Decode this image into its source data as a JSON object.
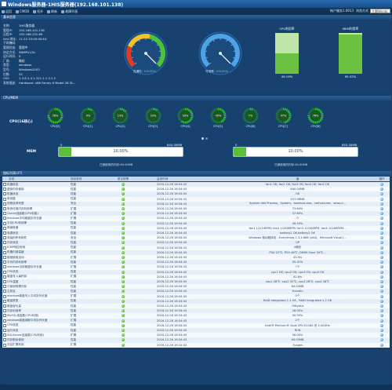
{
  "window": {
    "title": "Windows服务器-1HIS服务器(192.168.101.138)"
  },
  "toolbar": {
    "items": [
      "返回",
      "CMDB",
      "拓扑",
      "刷新",
      "故障列表"
    ],
    "account_label": "帐户服务1.0013",
    "mode_label": "浏览方式",
    "mode_value": "主题Windo"
  },
  "basic": {
    "header": "基本信息",
    "rows": [
      {
        "k": "名称:",
        "v": "1HIS服务器"
      },
      {
        "k": "管理IP:",
        "v": "192.168.101.138"
      },
      {
        "k": "远程IP:",
        "v": "192.168.101.69"
      },
      {
        "k": "MAC地址:",
        "v": "11:22:33:00:00:E4"
      },
      {
        "k": "子网掩码:",
        "v": ""
      },
      {
        "k": "管理状态:",
        "v": "管理中"
      },
      {
        "k": "协议方式:",
        "v": "SNMPv1/2c"
      },
      {
        "k": "运行时间:",
        "v": "0"
      },
      {
        "k": "厂商:",
        "v": "微软"
      },
      {
        "k": "类型:",
        "v": "windows"
      },
      {
        "k": "型号:",
        "v": "Windows2003"
      },
      {
        "k": "位数:",
        "v": "32"
      },
      {
        "k": "OID:",
        "v": "1.3.6.1.4.1.311.1.1.3.1.2"
      },
      {
        "k": "系统描述:",
        "v": "Hardware: x86 Family 6 Model 26 St..."
      }
    ],
    "gauge1": {
      "label": "连通性",
      "value": "100.00%",
      "fraction": 1.0
    },
    "gauge2": {
      "label": "可用率",
      "value": "100.00%",
      "fraction": 1.0
    },
    "cpu_box": {
      "label": "CPU利用率",
      "value": "49.19%",
      "fraction": 0.4919
    },
    "mem_box": {
      "label": "MEM利用率",
      "value": "95.32%",
      "fraction": 0.9532
    }
  },
  "cpumem": {
    "header": "CPU/MEM",
    "cpu_title": "CPU(16核心)",
    "cores": [
      {
        "label": "CPU[0]",
        "value": "76%"
      },
      {
        "label": "CPU[1]",
        "value": "9%"
      },
      {
        "label": "CPU[2]",
        "value": "13%"
      },
      {
        "label": "CPU[3]",
        "value": "10%"
      },
      {
        "label": "CPU[4]",
        "value": "59%"
      },
      {
        "label": "CPU[5]",
        "value": "45%"
      },
      {
        "label": "CPU[6]",
        "value": "7%"
      },
      {
        "label": "CPU[7]",
        "value": "47%"
      },
      {
        "label": "CPU[8]",
        "value": "78%"
      }
    ],
    "mem_title": "MEM",
    "mem1": {
      "min": "0",
      "max": "640.00MB",
      "pct": "10.00%",
      "fraction": 0.1,
      "caption": "已被使用的内存:64.00MB"
    },
    "mem2": {
      "min": "0",
      "max": "640.00MB",
      "pct": "10.00%",
      "fraction": 0.1,
      "caption": "已被使用的内存:64.00MB"
    }
  },
  "indicators": {
    "header": "指标列表(47)",
    "columns": [
      "名称",
      "指标类别",
      "是否报警",
      "监测时间",
      "值",
      "操作"
    ],
    "rows": [
      {
        "name": "机器状态",
        "cat": "性能",
        "time": "2016-12-26 16:34:43",
        "val": "fan1 OK; fan2 OK; fan3 OK; fan4 OK; fan5 OK"
      },
      {
        "name": "虚拟内存使用",
        "cat": "性能",
        "time": "2016-12-26 16:34:43",
        "val": "640.00MB"
      },
      {
        "name": "机器状态",
        "cat": "性能",
        "time": "2016-12-26 16:34:43",
        "val": "OK"
      },
      {
        "name": "系统盘",
        "cat": "性能",
        "time": "2016-12-26 16:34:43",
        "val": "537.98MB"
      },
      {
        "name": "进程名称列表",
        "cat": "安全",
        "time": "2016-12-26 16:34:43",
        "val": "System Idle Process、System、taskhost.exe、smhost.exe、smss.e..."
      },
      {
        "name": "系统可用内存利用率",
        "cat": "扩展",
        "time": "2016-12-26 16:34:43",
        "val": "73.64%"
      },
      {
        "name": "Oracle连接数(CPU利用)",
        "cat": "扩展",
        "time": "2016-12-26 16:34:43",
        "val": "37.60%"
      },
      {
        "name": "windows平均磁盘队列长度",
        "cat": "扩展",
        "time": "2016-12-26 16:34:43",
        "val": "0"
      },
      {
        "name": "平均CPU利用率",
        "cat": "性能",
        "time": "2016-12-26 16:34:43",
        "val": "49.19%"
      },
      {
        "name": "风扇转速",
        "cat": "性能",
        "time": "2016-12-26 16:34:43",
        "val": "fan1 12224RPM; fan2 12208RPM; fan3 12240RPM; fan4 12160RPM..."
      },
      {
        "name": "电源状态",
        "cat": "性能",
        "time": "2016-12-26 16:34:43",
        "val": "battery1 OK;battery2 OK"
      },
      {
        "name": "安装的所有软件",
        "cat": "安全",
        "time": "2016-12-26 16:34:43",
        "val": "Windows 驱动程序包 - Everything 1.3.4.686 (x64)、Microsoft Visual J..."
      },
      {
        "name": "内存状态",
        "cat": "性能",
        "time": "2016-12-26 16:34:43",
        "val": "UP"
      },
      {
        "name": "ICMP响应时间",
        "cat": "性能",
        "time": "2016-12-26 16:34:43",
        "val": "4毫秒"
      },
      {
        "name": "机器内部温度",
        "cat": "性能",
        "time": "2016-12-26 16:34:43",
        "val": "PSU 22℃; PCH 46℃; DIMM Zone 30℃..."
      },
      {
        "name": "磁盘使用活动",
        "cat": "扩展",
        "time": "2016-12-26 16:34:43",
        "val": "43.9/s"
      },
      {
        "name": "平均内存利用率",
        "cat": "性能",
        "time": "2016-12-26 16:34:43",
        "val": "95.32%"
      },
      {
        "name": "windows当前磁盘队列长度",
        "cat": "扩展",
        "time": "2016-12-26 16:34:43",
        "val": "7个"
      },
      {
        "name": "CPU状态",
        "cat": "性能",
        "time": "2016-12-26 16:34:43",
        "val": "cpu1 OK; cpu2 OK; cpu3 OK; cpu4 OK"
      },
      {
        "name": "磁盘写入每秒钟",
        "cat": "扩展",
        "time": "2016-12-26 16:34:43",
        "val": "42.8/s"
      },
      {
        "name": "CPU温度",
        "cat": "性能",
        "time": "2016-12-26 16:34:43",
        "val": "cpu1 28℃; cpu2 32℃; cpu3 28℃; cpu4 36℃"
      },
      {
        "name": "已使用物理内存",
        "cat": "性能",
        "time": "2016-12-26 16:34:43",
        "val": "64.00MB"
      },
      {
        "name": "主机名",
        "cat": "性能",
        "time": "2016-12-26 16:34:43",
        "val": "Yuanbin"
      },
      {
        "name": "windows磁盘写入平均队列长度",
        "cat": "扩展",
        "time": "2016-12-26 16:34:43",
        "val": "0个"
      },
      {
        "name": "磁盘类型",
        "cat": "性能",
        "time": "2016-12-26 16:34:43",
        "val": "RAID Integrated 1.1 OK、RAID Integrated 1.2 OK"
      },
      {
        "name": "磁盘吞吐量",
        "cat": "性能",
        "time": "2016-12-26 16:34:43",
        "val": "70Byte/s"
      },
      {
        "name": "内存利用率",
        "cat": "性能",
        "time": "2016-12-26 16:34:43",
        "val": "28.00%"
      },
      {
        "name": "MySQL连接数(CPU利用)",
        "cat": "扩展",
        "time": "2016-12-26 16:34:43",
        "val": "50.99%"
      },
      {
        "name": "windows磁盘读取平均队列长度",
        "cat": "扩展",
        "time": "2016-12-26 16:34:43",
        "val": "2个"
      },
      {
        "name": "CPU信息",
        "cat": "性能",
        "time": "2016-12-26 16:34:43",
        "val": "Intel® Pentium® Dual CPU E2180 @ 2.00GHz"
      },
      {
        "name": "运行状态",
        "cat": "性能",
        "time": "2016-12-26 16:34:43",
        "val": "RUN"
      },
      {
        "name": "SQLServer连接数(CPU利用)",
        "cat": "扩展",
        "time": "2016-12-26 16:34:43",
        "val": "56.00%"
      },
      {
        "name": "内存剩余使用",
        "cat": "性能",
        "time": "2016-12-26 16:34:43",
        "val": "64.00MB"
      },
      {
        "name": "分区扩展利用",
        "cat": "扩展",
        "time": "2016-12-26 16:34:43",
        "val": "7pages"
      }
    ]
  },
  "colors": {
    "accent": "#164d88",
    "ok": "#2e9a1a",
    "panel": "#17416f"
  }
}
